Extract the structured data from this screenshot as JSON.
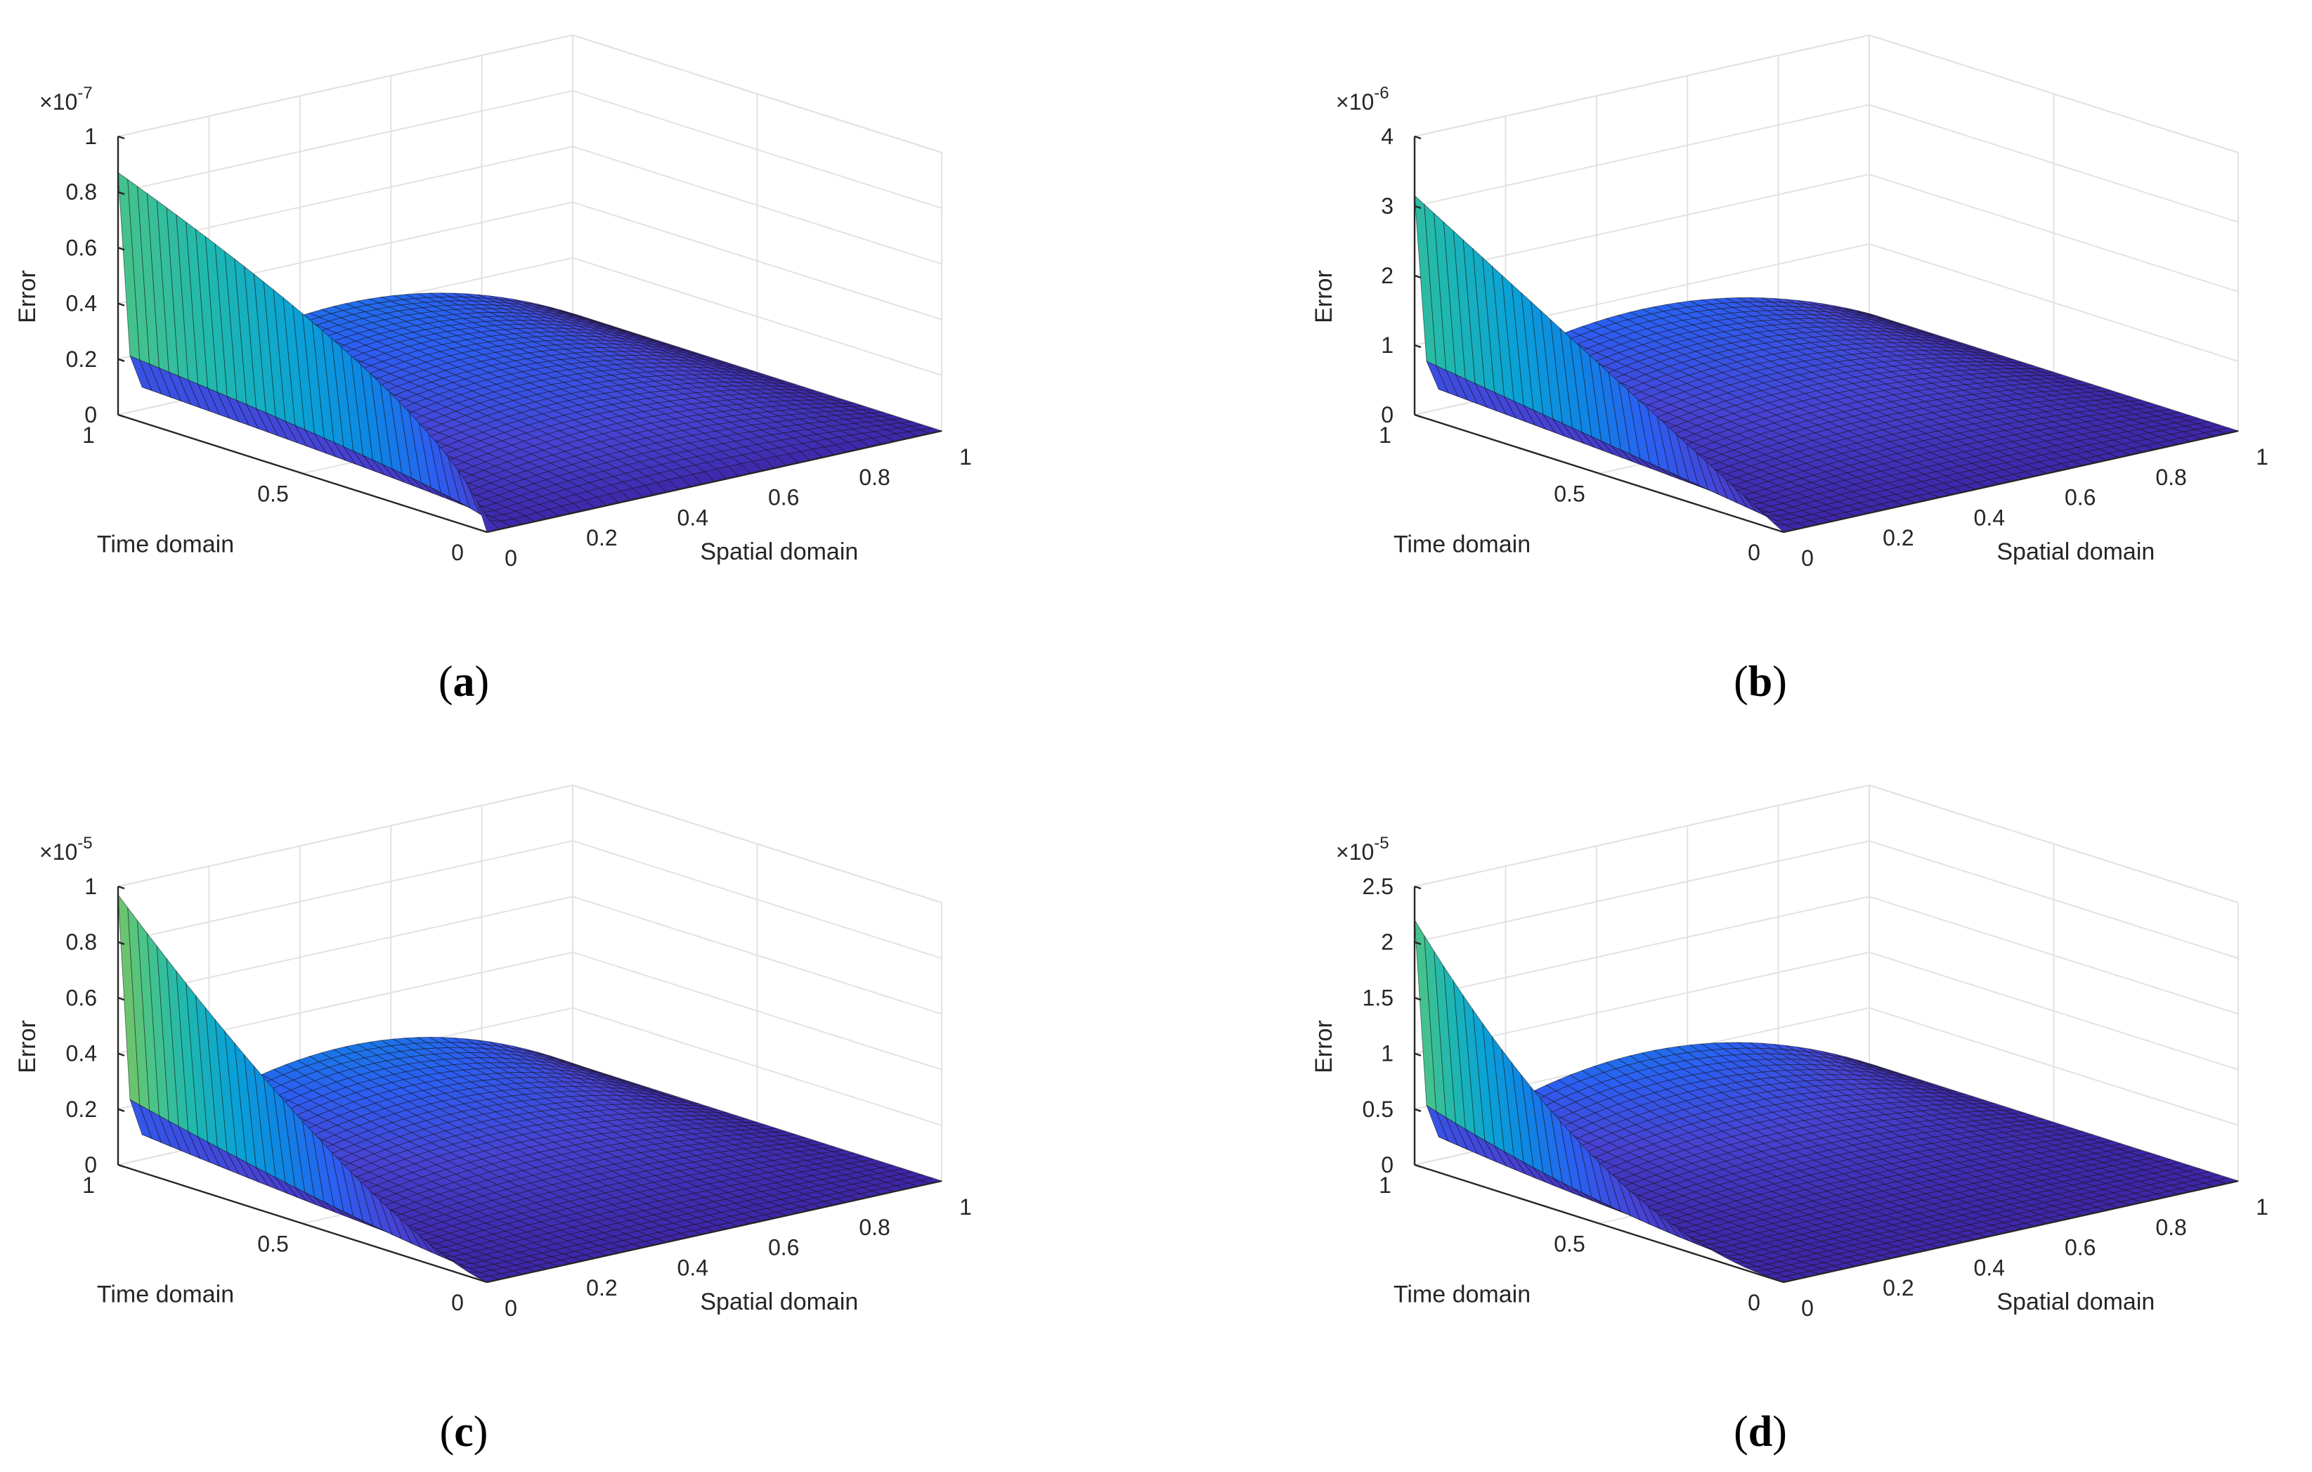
{
  "chart_data": [
    {
      "type": "surface",
      "panel": "a",
      "label_open": "(",
      "label_letter": "a",
      "label_close": ")",
      "xlabel": "Spatial domain",
      "ylabel": "Time domain",
      "zlabel": "Error",
      "xlim": [
        0,
        1
      ],
      "ylim": [
        0,
        1
      ],
      "zlim": [
        0,
        1e-07
      ],
      "x_ticks": [
        "0",
        "0.2",
        "0.4",
        "0.6",
        "0.8",
        "1"
      ],
      "y_ticks": [
        "0",
        "0.5",
        "1"
      ],
      "z_ticks": [
        "0",
        "0.2",
        "0.4",
        "0.6",
        "0.8",
        "1"
      ],
      "z_exponent_base": "×10",
      "z_exponent": "-7",
      "surface": {
        "peak_at_t0": 0.0,
        "peak_at_t1": 0.87,
        "shape": "x(1-x)-shaped profile along x, growing with t",
        "t_power": 0.6,
        "wall_at_x0": 0.87
      }
    },
    {
      "type": "surface",
      "panel": "b",
      "label_open": "(",
      "label_letter": "b",
      "label_close": ")",
      "xlabel": "Spatial domain",
      "ylabel": "Time domain",
      "zlabel": "Error",
      "xlim": [
        0,
        1
      ],
      "ylim": [
        0,
        1
      ],
      "zlim": [
        0,
        4e-06
      ],
      "x_ticks": [
        "0",
        "0.2",
        "0.4",
        "0.6",
        "0.8",
        "1"
      ],
      "y_ticks": [
        "0",
        "0.5",
        "1"
      ],
      "z_ticks": [
        "0",
        "1",
        "2",
        "3",
        "4"
      ],
      "z_exponent_base": "×10",
      "z_exponent": "-6",
      "surface": {
        "peak_at_t0": 0.0,
        "peak_at_t1": 3.15,
        "t_power": 1.0,
        "wall_at_x0": 3.15
      }
    },
    {
      "type": "surface",
      "panel": "c",
      "label_open": "(",
      "label_letter": "c",
      "label_close": ")",
      "xlabel": "Spatial domain",
      "ylabel": "Time domain",
      "zlabel": "Error",
      "xlim": [
        0,
        1
      ],
      "ylim": [
        0,
        1
      ],
      "zlim": [
        0,
        1e-05
      ],
      "x_ticks": [
        "0",
        "0.2",
        "0.4",
        "0.6",
        "0.8",
        "1"
      ],
      "y_ticks": [
        "0",
        "0.5",
        "1"
      ],
      "z_ticks": [
        "0",
        "0.2",
        "0.4",
        "0.6",
        "0.8",
        "1"
      ],
      "z_exponent_base": "×10",
      "z_exponent": "-5",
      "surface": {
        "peak_at_t0": 0.0,
        "peak_at_t1": 0.97,
        "t_power": 1.4,
        "wall_at_x0": 0.97
      }
    },
    {
      "type": "surface",
      "panel": "d",
      "label_open": "(",
      "label_letter": "d",
      "label_close": ")",
      "xlabel": "Spatial domain",
      "ylabel": "Time domain",
      "zlabel": "Error",
      "xlim": [
        0,
        1
      ],
      "ylim": [
        0,
        1
      ],
      "zlim": [
        0,
        2.5e-05
      ],
      "x_ticks": [
        "0",
        "0.2",
        "0.4",
        "0.6",
        "0.8",
        "1"
      ],
      "y_ticks": [
        "0",
        "0.5",
        "1"
      ],
      "z_ticks": [
        "0",
        "0.5",
        "1",
        "1.5",
        "2",
        "2.5"
      ],
      "z_exponent_base": "×10",
      "z_exponent": "-5",
      "surface": {
        "peak_at_t0": 0.0,
        "peak_at_t1": 2.2,
        "t_power": 2.0,
        "wall_at_x0": 2.2
      }
    }
  ],
  "colormap": [
    "#3e26a8",
    "#4743d4",
    "#2c5ef2",
    "#0f84e4",
    "#0aa2d6",
    "#1fb8b0",
    "#4bc487",
    "#8fc552",
    "#c9bd3e",
    "#f1b841",
    "#f8d22e",
    "#f8ec1b"
  ]
}
